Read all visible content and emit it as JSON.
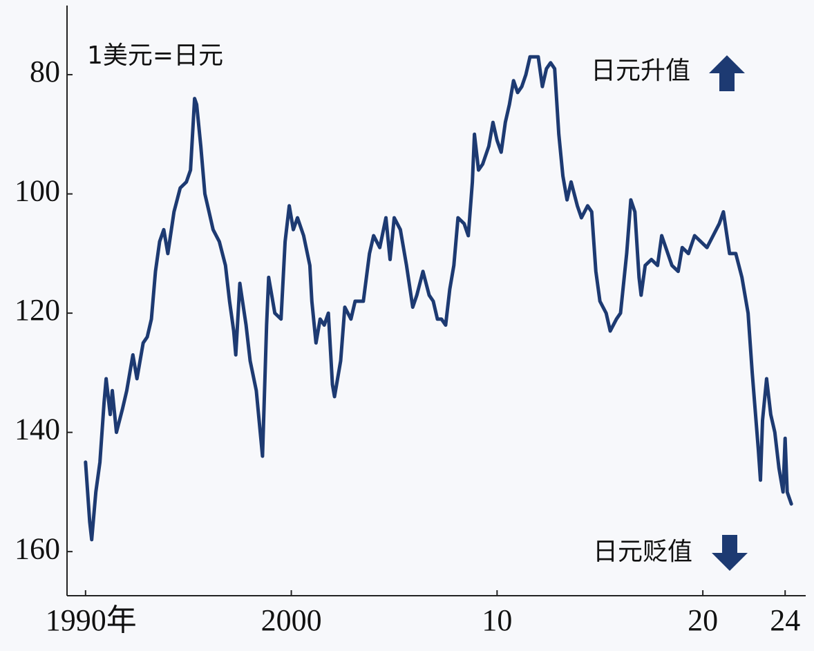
{
  "chart_data": {
    "type": "line",
    "unit_label": "1美元=日元",
    "annotations": {
      "up": "日元升值",
      "down": "日元贬值"
    },
    "color": "#1d3a72",
    "invert_y": true,
    "xlim": [
      1989.1,
      2025.0
    ],
    "ylim": [
      68.4,
      167.4
    ],
    "xticks": [
      {
        "value": 1990,
        "label": "1990年"
      },
      2000,
      {
        "value": 2010,
        "label": "10"
      },
      {
        "value": 2020,
        "label": "20"
      },
      {
        "value": 2024,
        "label": "24"
      }
    ],
    "yticks": [
      80,
      100,
      120,
      140,
      160
    ],
    "x": [
      1990.0,
      1990.2,
      1990.3,
      1990.5,
      1990.7,
      1990.9,
      1991.0,
      1991.2,
      1991.3,
      1991.5,
      1991.8,
      1992.0,
      1992.3,
      1992.5,
      1992.8,
      1993.0,
      1993.2,
      1993.4,
      1993.6,
      1993.8,
      1994.0,
      1994.3,
      1994.6,
      1994.9,
      1995.1,
      1995.3,
      1995.4,
      1995.6,
      1995.8,
      1996.0,
      1996.2,
      1996.5,
      1996.8,
      1997.0,
      1997.2,
      1997.3,
      1997.5,
      1997.8,
      1998.0,
      1998.3,
      1998.6,
      1998.8,
      1998.9,
      1999.2,
      1999.5,
      1999.7,
      1999.9,
      2000.1,
      2000.3,
      2000.6,
      2000.9,
      2001.0,
      2001.2,
      2001.4,
      2001.6,
      2001.8,
      2002.0,
      2002.1,
      2002.4,
      2002.6,
      2002.9,
      2003.1,
      2003.5,
      2003.8,
      2004.0,
      2004.3,
      2004.6,
      2004.8,
      2005.0,
      2005.3,
      2005.6,
      2005.9,
      2006.1,
      2006.4,
      2006.7,
      2006.9,
      2007.1,
      2007.3,
      2007.5,
      2007.7,
      2007.9,
      2008.1,
      2008.4,
      2008.6,
      2008.8,
      2008.9,
      2009.1,
      2009.3,
      2009.6,
      2009.8,
      2010.0,
      2010.2,
      2010.4,
      2010.6,
      2010.8,
      2011.0,
      2011.2,
      2011.4,
      2011.6,
      2011.8,
      2012.0,
      2012.2,
      2012.4,
      2012.6,
      2012.8,
      2013.0,
      2013.2,
      2013.4,
      2013.6,
      2013.9,
      2014.1,
      2014.4,
      2014.6,
      2014.8,
      2015.0,
      2015.3,
      2015.5,
      2015.8,
      2016.0,
      2016.3,
      2016.5,
      2016.7,
      2016.9,
      2017.0,
      2017.2,
      2017.5,
      2017.8,
      2018.0,
      2018.2,
      2018.5,
      2018.8,
      2019.0,
      2019.3,
      2019.6,
      2019.9,
      2020.2,
      2020.5,
      2020.8,
      2021.0,
      2021.3,
      2021.6,
      2021.9,
      2022.2,
      2022.4,
      2022.7,
      2022.8,
      2022.9,
      2023.1,
      2023.3,
      2023.5,
      2023.7,
      2023.9,
      2024.0,
      2024.1,
      2024.3
    ],
    "values": [
      145,
      155,
      158,
      150,
      145,
      135,
      131,
      137,
      133,
      140,
      136,
      133,
      127,
      131,
      125,
      124,
      121,
      113,
      108,
      106,
      110,
      103,
      99,
      98,
      96,
      84,
      85,
      92,
      100,
      103,
      106,
      108,
      112,
      118,
      123,
      127,
      115,
      122,
      128,
      133,
      144,
      122,
      114,
      120,
      121,
      108,
      102,
      106,
      104,
      107,
      112,
      118,
      125,
      121,
      122,
      120,
      132,
      134,
      128,
      119,
      121,
      118,
      118,
      110,
      107,
      109,
      104,
      111,
      104,
      106,
      112,
      119,
      117,
      113,
      117,
      118,
      121,
      121,
      122,
      116,
      112,
      104,
      105,
      107,
      98,
      90,
      96,
      95,
      92,
      88,
      91,
      93,
      88,
      85,
      81,
      83,
      82,
      80,
      77,
      77,
      77,
      82,
      79,
      78,
      79,
      90,
      97,
      101,
      98,
      102,
      104,
      102,
      103,
      113,
      118,
      120,
      123,
      121,
      120,
      110,
      101,
      103,
      114,
      117,
      112,
      111,
      112,
      107,
      109,
      112,
      113,
      109,
      110,
      107,
      108,
      109,
      107,
      105,
      103,
      110,
      110,
      114,
      120,
      130,
      143,
      148,
      138,
      131,
      137,
      140,
      146,
      150,
      141,
      150,
      152
    ]
  }
}
